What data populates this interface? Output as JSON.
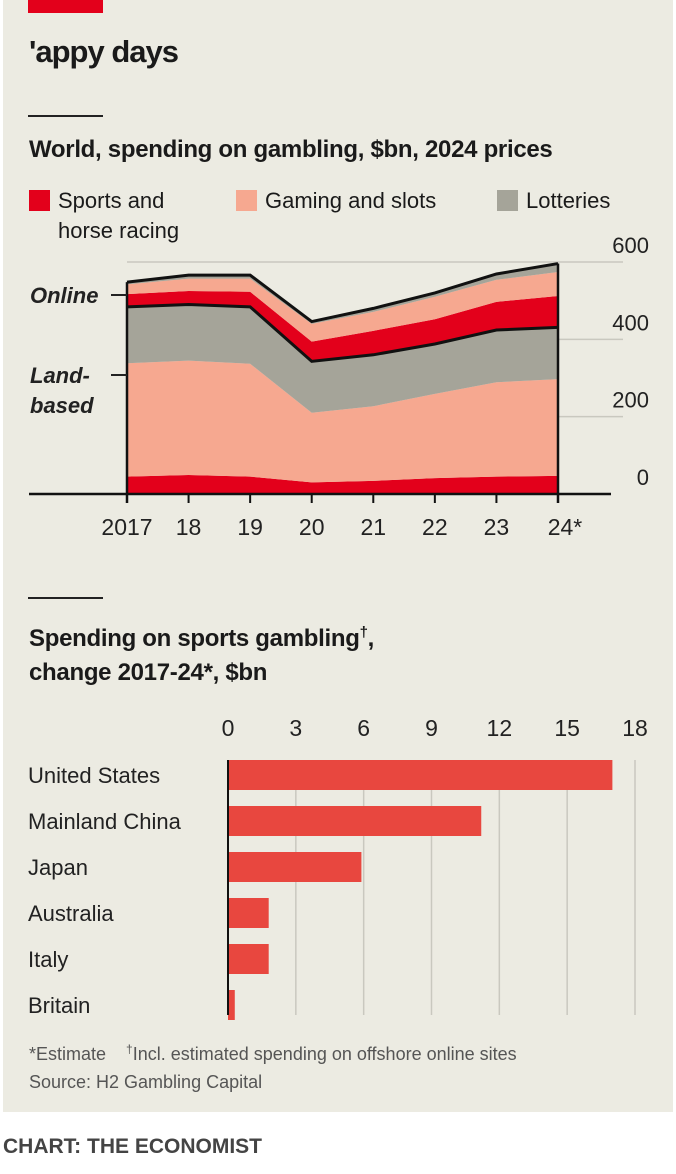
{
  "title": "'appy days",
  "footnote": {
    "estimate": "*Estimate",
    "dagger": "†",
    "incl": "Incl. estimated spending on offshore online sites",
    "source": "Source: H2 Gambling Capital"
  },
  "credit": "CHART: THE ECONOMIST",
  "colors": {
    "sports": "#e3001b",
    "gaming": "#f6a890",
    "lotteries": "#a5a499",
    "bar": "#e8473f",
    "background": "#ecebe2"
  },
  "chart_data": [
    {
      "type": "area",
      "title": "World, spending on gambling, $bn, 2024 prices",
      "legend": [
        "Sports and horse racing",
        "Gaming and slots",
        "Lotteries"
      ],
      "legend_line2": "horse racing",
      "legend_line1": "Sports and",
      "group_labels": {
        "online": "Online",
        "land1": "Land-",
        "land2": "based"
      },
      "x": [
        "2017",
        "18",
        "19",
        "20",
        "21",
        "22",
        "23",
        "24*"
      ],
      "ylim": [
        0,
        600
      ],
      "yticks": [
        "0",
        "200",
        "400",
        "600"
      ],
      "series": [
        {
          "name": "Land-based sports and horse racing",
          "group": "land",
          "kind": "sports",
          "values": [
            45,
            49,
            45,
            30,
            34,
            41,
            45,
            47
          ]
        },
        {
          "name": "Land-based gaming and slots",
          "group": "land",
          "kind": "gaming",
          "values": [
            293,
            296,
            292,
            180,
            193,
            218,
            244,
            250
          ]
        },
        {
          "name": "Land-based lotteries",
          "group": "land",
          "kind": "lotteries",
          "values": [
            146,
            145,
            147,
            133,
            133,
            129,
            135,
            134
          ]
        },
        {
          "name": "Online sports and horse racing",
          "group": "online",
          "kind": "sports",
          "values": [
            33,
            35,
            39,
            51,
            62,
            64,
            73,
            81
          ]
        },
        {
          "name": "Online gaming and slots",
          "group": "online",
          "kind": "gaming",
          "values": [
            25,
            32,
            34,
            46,
            49,
            58,
            57,
            62
          ]
        },
        {
          "name": "Online lotteries",
          "group": "online",
          "kind": "lotteries",
          "values": [
            6,
            9,
            9,
            6,
            9,
            10,
            15,
            22
          ]
        }
      ]
    },
    {
      "type": "bar",
      "title_line1": "Spending on sports gambling",
      "title_dagger": "†",
      "title_comma": ",",
      "title_line2": "change 2017-24*, $bn",
      "categories": [
        "United States",
        "Mainland China",
        "Japan",
        "Australia",
        "Italy",
        "Britain"
      ],
      "values": [
        17.0,
        11.2,
        5.9,
        1.8,
        1.8,
        0.3
      ],
      "xlim": [
        0,
        18
      ],
      "xticks": [
        "0",
        "3",
        "6",
        "9",
        "12",
        "15",
        "18"
      ]
    }
  ]
}
